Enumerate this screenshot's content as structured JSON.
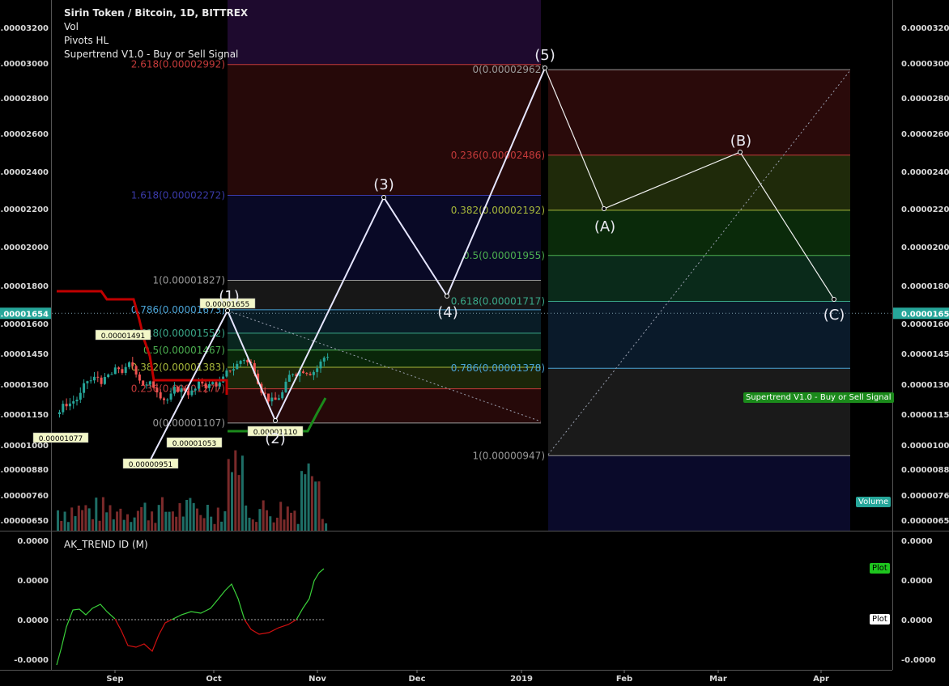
{
  "header": {
    "title": "Sirin Token / Bitcoin, 1D, BITTREX",
    "studies": [
      "Vol",
      "Pivots HL",
      "Supertrend V1.0 - Buy or Sell Signal"
    ]
  },
  "price_axis": {
    "ticks": [
      "0.00003200",
      "0.00003000",
      "0.00002800",
      "0.00002600",
      "0.00002400",
      "0.00002200",
      "0.00002000",
      "0.00001800",
      "0.00001600",
      "0.00001450",
      "0.00001300",
      "0.00001150",
      "0.00001000",
      "0.00000880",
      "0.00000760",
      "0.00000650"
    ],
    "current_price": "0.00001654"
  },
  "time_axis": {
    "ticks": [
      "Sep",
      "Oct",
      "Nov",
      "Dec",
      "2019",
      "Feb",
      "Mar",
      "Apr"
    ]
  },
  "indicator": {
    "title": "AK_TREND ID (M)",
    "ticks": [
      "0.0000",
      "0.0000",
      "0.0000",
      "-0.0000"
    ],
    "plot_label": "Plot",
    "plot_values": [
      "0.0000",
      "0.0000"
    ]
  },
  "badges": {
    "supertrend": "Supertrend V1.0 - Buy or Sell Signal",
    "volume": "Volume"
  },
  "colors": {
    "up": "#26a69a",
    "down": "#ef5350",
    "supertrend_down": "#c00000",
    "supertrend_up": "#1b8a1b",
    "wave": "#e6e6ff",
    "indicator_up": "#3ad13a",
    "indicator_down": "#d01010"
  },
  "chart_data": {
    "type": "candlestick",
    "symbol": "Sirin Token / Bitcoin",
    "timeframe": "1D",
    "exchange": "BITTREX",
    "last_price": 1.654e-05,
    "pivots": [
      {
        "label": "0.00001077",
        "price": 1.077e-05
      },
      {
        "label": "0.00001491",
        "price": 1.491e-05
      },
      {
        "label": "0.00000951",
        "price": 9.51e-06
      },
      {
        "label": "0.00001053",
        "price": 1.053e-05
      },
      {
        "label": "0.00001655",
        "price": 1.655e-05
      },
      {
        "label": "0.00001110",
        "price": 1.11e-05
      }
    ],
    "wave_labels": [
      "(1)",
      "(2)",
      "(3)",
      "(4)",
      "(5)",
      "(A)",
      "(B)",
      "(C)"
    ],
    "fib_extension": [
      {
        "label": "2.618(0.00002992)",
        "price": 2.992e-05,
        "color": "#c43a3a"
      },
      {
        "label": "1.618(0.00002272)",
        "price": 2.272e-05,
        "color": "#3a3aa8"
      },
      {
        "label": "1(0.00001827)",
        "price": 1.827e-05,
        "color": "#9a9a9a"
      },
      {
        "label": "0.786(0.00001673)",
        "price": 1.673e-05,
        "color": "#4aa3d6"
      },
      {
        "label": "0.618(0.00001552)",
        "price": 1.552e-05,
        "color": "#3aa889"
      },
      {
        "label": "0.5(0.00001467)",
        "price": 1.467e-05,
        "color": "#4caf50"
      },
      {
        "label": "0.382(0.00001383)",
        "price": 1.383e-05,
        "color": "#a8b83a"
      },
      {
        "label": "0.236(0.00001277)",
        "price": 1.277e-05,
        "color": "#c43a3a"
      },
      {
        "label": "0(0.00001107)",
        "price": 1.107e-05,
        "color": "#9a9a9a"
      }
    ],
    "fib_retracement": [
      {
        "label": "0(0.00002962)",
        "price": 2.962e-05,
        "color": "#9a9a9a"
      },
      {
        "label": "0.236(0.00002486)",
        "price": 2.486e-05,
        "color": "#c43a3a"
      },
      {
        "label": "0.382(0.00002192)",
        "price": 2.192e-05,
        "color": "#a8b83a"
      },
      {
        "label": "0.5(0.00001955)",
        "price": 1.955e-05,
        "color": "#4caf50"
      },
      {
        "label": "0.618(0.00001717)",
        "price": 1.717e-05,
        "color": "#3aa889"
      },
      {
        "label": "0.786(0.00001378)",
        "price": 1.378e-05,
        "color": "#4aa3d6"
      },
      {
        "label": "1(0.00000947)",
        "price": 9.47e-06,
        "color": "#9a9a9a"
      }
    ]
  }
}
